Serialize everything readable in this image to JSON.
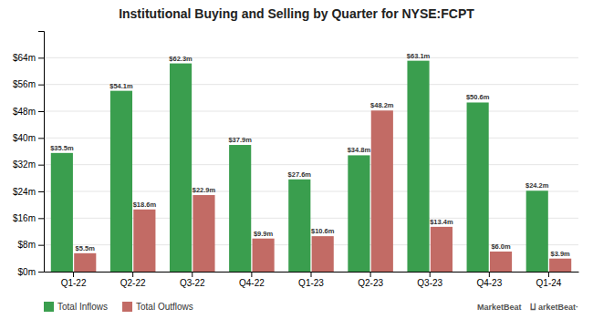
{
  "chart_data": {
    "type": "bar",
    "title": "Institutional Buying and Selling by Quarter for NYSE:FCPT",
    "categories": [
      "Q1-22",
      "Q2-22",
      "Q3-22",
      "Q4-22",
      "Q1-23",
      "Q2-23",
      "Q3-23",
      "Q4-23",
      "Q1-24"
    ],
    "series": [
      {
        "name": "Total Inflows",
        "color": "#3a9e4e",
        "values": [
          35.5,
          54.1,
          62.3,
          37.9,
          27.6,
          34.8,
          63.1,
          50.6,
          24.2
        ],
        "value_labels": [
          "$35.5m",
          "$54.1m",
          "$62.3m",
          "$37.9m",
          "$27.6m",
          "$34.8m",
          "$63.1m",
          "$50.6m",
          "$24.2m"
        ]
      },
      {
        "name": "Total Outflows",
        "color": "#c26b65",
        "values": [
          5.5,
          18.6,
          22.9,
          9.9,
          10.6,
          48.2,
          13.4,
          6.0,
          3.9
        ],
        "value_labels": [
          "$5.5m",
          "$18.6m",
          "$22.9m",
          "$9.9m",
          "$10.6m",
          "$48.2m",
          "$13.4m",
          "$6.0m",
          "$3.9m"
        ]
      }
    ],
    "ylim": [
      0,
      72
    ],
    "yticks": [
      {
        "value": 0,
        "label": "$0m"
      },
      {
        "value": 8,
        "label": "$8m"
      },
      {
        "value": 16,
        "label": "$16m"
      },
      {
        "value": 24,
        "label": "$24m"
      },
      {
        "value": 32,
        "label": "$32m"
      },
      {
        "value": 40,
        "label": "$40m"
      },
      {
        "value": 48,
        "label": "$48m"
      },
      {
        "value": 56,
        "label": "$56m"
      },
      {
        "value": 64,
        "label": "$64m"
      }
    ],
    "grid": true,
    "legend": "bottom-left",
    "data_labels": true,
    "annotations": [
      "⨿ arketBeat·",
      "MarketBeat"
    ]
  }
}
